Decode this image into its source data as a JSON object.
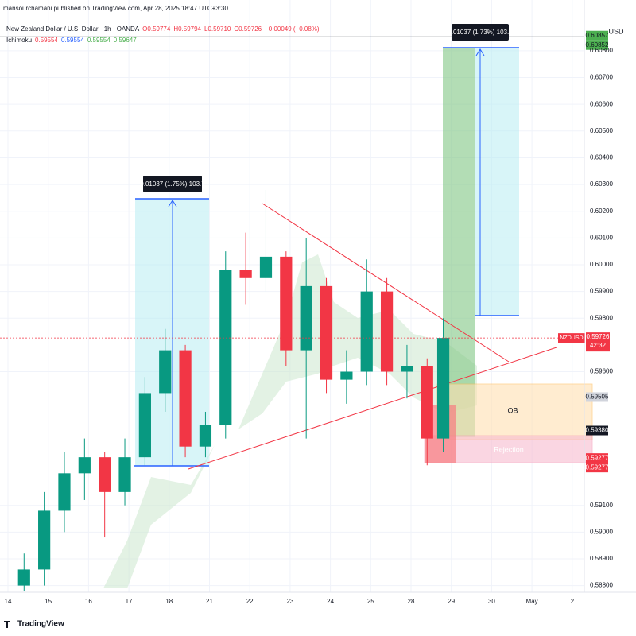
{
  "chart_data": {
    "type": "candlestick",
    "publisher": "mansourchamani published on TradingView.com, Apr 28, 2025 18:47 UTC+3:30",
    "title": "New Zealand Dollar / U.S. Dollar · 1h · OANDA",
    "ohlc_header": [
      "O0.59774",
      "H0.59794",
      "L0.59710",
      "C0.59726",
      "−0.00049 (−0.08%)"
    ],
    "indicator": {
      "name": "Ichimoku",
      "values": [
        {
          "label": "0.59554",
          "color": "#f23645"
        },
        {
          "label": "0.59554",
          "color": "#2962ff"
        },
        {
          "label": "0.59554",
          "color": "#4caf50"
        },
        {
          "label": "0.59647",
          "color": "#4caf50"
        }
      ]
    },
    "currency": "USD",
    "x": [
      0.4,
      0.9,
      1.4,
      1.9,
      2.4,
      2.9,
      3.4,
      3.9,
      4.4,
      4.9,
      5.4,
      5.9,
      6.4,
      6.9,
      7.4,
      7.9,
      8.4,
      8.9,
      9.4,
      9.9,
      10.4,
      10.8
    ],
    "open": [
      0.588,
      0.5886,
      0.5908,
      0.5922,
      0.5928,
      0.5915,
      0.5928,
      0.5952,
      0.5968,
      0.5932,
      0.594,
      0.5998,
      0.5995,
      0.6003,
      0.5968,
      0.5992,
      0.5957,
      0.596,
      0.599,
      0.596,
      0.5962,
      0.5935
    ],
    "high": [
      0.5892,
      0.5915,
      0.593,
      0.5935,
      0.593,
      0.5935,
      0.5958,
      0.5976,
      0.597,
      0.5945,
      0.6005,
      0.6012,
      0.6028,
      0.6005,
      0.601,
      0.5995,
      0.5968,
      0.6002,
      0.5995,
      0.597,
      0.5965,
      0.598
    ],
    "low": [
      0.5878,
      0.588,
      0.59,
      0.5912,
      0.5898,
      0.591,
      0.5925,
      0.5945,
      0.5928,
      0.5928,
      0.5935,
      0.5985,
      0.599,
      0.5962,
      0.5935,
      0.5952,
      0.5948,
      0.5955,
      0.5955,
      0.595,
      0.5925,
      0.593
    ],
    "close": [
      0.5886,
      0.5908,
      0.5922,
      0.5928,
      0.5915,
      0.5928,
      0.5952,
      0.5968,
      0.5932,
      0.594,
      0.5998,
      0.5995,
      0.6003,
      0.5968,
      0.5992,
      0.5957,
      0.596,
      0.599,
      0.596,
      0.5962,
      0.5935,
      0.59726
    ],
    "up_color": "#089981",
    "down_color": "#f23645",
    "xlim": [
      -0.2,
      14.3
    ],
    "xticks": [
      {
        "value": 0,
        "label": "14"
      },
      {
        "value": 1,
        "label": "15"
      },
      {
        "value": 2,
        "label": "16"
      },
      {
        "value": 3,
        "label": "17"
      },
      {
        "value": 4,
        "label": "18"
      },
      {
        "value": 5,
        "label": "21"
      },
      {
        "value": 6,
        "label": "22"
      },
      {
        "value": 7,
        "label": "23"
      },
      {
        "value": 8,
        "label": "24"
      },
      {
        "value": 9,
        "label": "25"
      },
      {
        "value": 10,
        "label": "28"
      },
      {
        "value": 11,
        "label": "29"
      },
      {
        "value": 12,
        "label": "30"
      },
      {
        "value": 13,
        "label": "May"
      },
      {
        "value": 14,
        "label": "2"
      }
    ],
    "ylim": [
      0.58775,
      0.6099
    ],
    "yticks": [
      {
        "value": 0.608,
        "label": "0.60800"
      },
      {
        "value": 0.607,
        "label": "0.60700"
      },
      {
        "value": 0.606,
        "label": "0.60600"
      },
      {
        "value": 0.605,
        "label": "0.60500"
      },
      {
        "value": 0.604,
        "label": "0.60400"
      },
      {
        "value": 0.603,
        "label": "0.60300"
      },
      {
        "value": 0.602,
        "label": "0.60200"
      },
      {
        "value": 0.601,
        "label": "0.60100"
      },
      {
        "value": 0.6,
        "label": "0.60000"
      },
      {
        "value": 0.599,
        "label": "0.59900"
      },
      {
        "value": 0.598,
        "label": "0.59800"
      },
      {
        "value": 0.596,
        "label": "0.59600"
      },
      {
        "value": 0.591,
        "label": "0.59100"
      },
      {
        "value": 0.59,
        "label": "0.59000"
      },
      {
        "value": 0.589,
        "label": "0.58900"
      },
      {
        "value": 0.588,
        "label": "0.58800"
      }
    ],
    "grid": true,
    "price_labels": [
      {
        "value": 0.60857,
        "label": "0.60857",
        "color": "#4caf50",
        "text_color": "#131722"
      },
      {
        "value": 0.60852,
        "label": "0.60852",
        "color": "#4caf50",
        "text_color": "#131722"
      },
      {
        "value": 0.59505,
        "label": "0.59505",
        "color": "#d1d4dc",
        "text_color": "#131722"
      },
      {
        "value": 0.5938,
        "label": "0.59380",
        "color": "#131722",
        "text_color": "#ffffff"
      },
      {
        "value": 0.59277,
        "label": "0.59277",
        "color": "#f23645",
        "text_color": "#ffffff"
      },
      {
        "value": 0.59277,
        "label": "0.59277",
        "color": "#f23645",
        "text_color": "#ffffff"
      }
    ],
    "last_price": {
      "symbol": "NZDUSD",
      "value": 0.59726,
      "label": "0.59726",
      "countdown": "42:32",
      "color": "#f23645"
    },
    "horizontal_line": 0.60852,
    "annotations": {
      "measure_left": "0.01037 (1.75%) 103.7",
      "measure_right": "0.01037 (1.73%) 103.7",
      "order_block": "OB",
      "rejection": "Rejection"
    },
    "brand": "TradingView"
  }
}
